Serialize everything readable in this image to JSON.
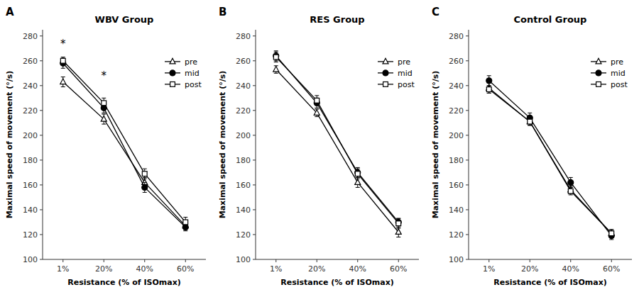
{
  "chart_data": [
    {
      "type": "line",
      "panel_label": "A",
      "title": "WBV Group",
      "x_label": "Resistance (% of ISOmax)",
      "y_label": "Maximal speed of movement (°/s)",
      "categories": [
        "1%",
        "20%",
        "40%",
        "60%"
      ],
      "color": "#000000",
      "series": [
        {
          "name": "pre",
          "marker": "triangle-open",
          "values": [
            243,
            213,
            162,
            127
          ],
          "errors": [
            4,
            4,
            4,
            3
          ]
        },
        {
          "name": "mid",
          "marker": "circle-filled",
          "values": [
            258,
            222,
            158,
            126
          ],
          "errors": [
            4,
            4,
            4,
            3
          ]
        },
        {
          "name": "post",
          "marker": "square-open",
          "values": [
            260,
            226,
            169,
            130
          ],
          "errors": [
            3,
            4,
            4,
            4
          ]
        }
      ],
      "annotations": [
        {
          "category": "1%",
          "y": 271,
          "text": "*"
        },
        {
          "category": "20%",
          "y": 245,
          "text": "*"
        }
      ],
      "ylim": [
        100,
        285
      ],
      "yticks": [
        100,
        120,
        140,
        160,
        180,
        200,
        220,
        240,
        260,
        280
      ],
      "grid": false,
      "legend": "upper-right"
    },
    {
      "type": "line",
      "panel_label": "B",
      "title": "RES Group",
      "x_label": "Resistance (% of ISOmax)",
      "y_label": "Maximal speed of movement (°/s)",
      "categories": [
        "1%",
        "20%",
        "40%",
        "60%"
      ],
      "color": "#000000",
      "series": [
        {
          "name": "pre",
          "marker": "triangle-open",
          "values": [
            253,
            218,
            162,
            122
          ],
          "errors": [
            3,
            3,
            4,
            4
          ]
        },
        {
          "name": "mid",
          "marker": "circle-filled",
          "values": [
            264,
            226,
            170,
            130
          ],
          "errors": [
            4,
            4,
            4,
            3
          ]
        },
        {
          "name": "post",
          "marker": "square-open",
          "values": [
            263,
            228,
            169,
            129
          ],
          "errors": [
            4,
            4,
            4,
            4
          ]
        }
      ],
      "ylim": [
        100,
        285
      ],
      "yticks": [
        100,
        120,
        140,
        160,
        180,
        200,
        220,
        240,
        260,
        280
      ],
      "grid": false,
      "legend": "upper-right"
    },
    {
      "type": "line",
      "panel_label": "C",
      "title": "Control Group",
      "x_label": "Resistance (% of ISOmax)",
      "y_label": "Maximal speed of movement (°/s)",
      "categories": [
        "1%",
        "20%",
        "40%",
        "60%"
      ],
      "color": "#000000",
      "series": [
        {
          "name": "pre",
          "marker": "triangle-open",
          "values": [
            238,
            211,
            156,
            121
          ],
          "errors": [
            4,
            3,
            3,
            3
          ]
        },
        {
          "name": "mid",
          "marker": "circle-filled",
          "values": [
            244,
            214,
            162,
            119
          ],
          "errors": [
            4,
            4,
            4,
            3
          ]
        },
        {
          "name": "post",
          "marker": "square-open",
          "values": [
            237,
            211,
            155,
            121
          ],
          "errors": [
            3,
            3,
            3,
            3
          ]
        }
      ],
      "ylim": [
        100,
        285
      ],
      "yticks": [
        100,
        120,
        140,
        160,
        180,
        200,
        220,
        240,
        260,
        280
      ],
      "grid": false,
      "legend": "upper-right"
    }
  ]
}
